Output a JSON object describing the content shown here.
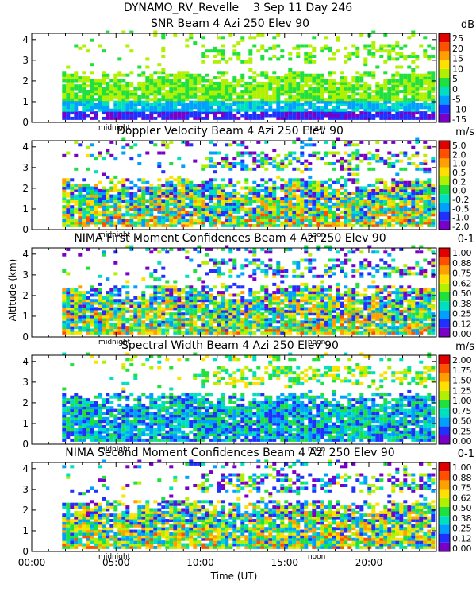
{
  "header": {
    "title": "DYNAMO_RV_Revelle    3 Sep 11 Day 246"
  },
  "chart_data": {
    "type": "heatmap",
    "xlabel": "Time (UT)",
    "ylabel": "Altitude (km)",
    "xlim": [
      0,
      24
    ],
    "x_ticks": [
      "00:00",
      "05:00",
      "10:00",
      "15:00",
      "20:00"
    ],
    "x_tick_values": [
      0,
      5,
      10,
      15,
      20
    ],
    "markers": [
      {
        "label": "midnight",
        "x": 4.9
      },
      {
        "label": "noon",
        "x": 16.9
      }
    ],
    "panels": [
      {
        "title": "SNR Beam 4 Azi 250 Elev 90",
        "unit": "dB",
        "ylim": [
          0,
          4.3
        ],
        "y_ticks": [
          "0",
          "1",
          "2",
          "3",
          "4"
        ],
        "colorbar_ticks": [
          "25",
          "20",
          "15",
          "10",
          "5",
          "0",
          "-5",
          "-10",
          "-15"
        ]
      },
      {
        "title": "Doppler Velocity Beam 4 Azi 250 Elev 90",
        "unit": "m/s",
        "ylim": [
          0,
          4.3
        ],
        "y_ticks": [
          "0",
          "1",
          "2",
          "3",
          "4"
        ],
        "colorbar_ticks": [
          "5.0",
          "2.0",
          "1.0",
          "0.5",
          "0.2",
          "0.0",
          "-0.2",
          "-0.5",
          "-1.0",
          "-2.0"
        ]
      },
      {
        "title": "NIMA First Moment Confidences Beam 4 Azi 250 Elev 90",
        "unit": "0-1",
        "ylim": [
          0,
          4.3
        ],
        "y_ticks": [
          "0",
          "1",
          "2",
          "3",
          "4"
        ],
        "colorbar_ticks": [
          "1.00",
          "0.88",
          "0.75",
          "0.62",
          "0.50",
          "0.38",
          "0.25",
          "0.12",
          "0.00"
        ]
      },
      {
        "title": "Spectral Width Beam 4 Azi 250 Elev 90",
        "unit": "m/s",
        "ylim": [
          0,
          4.3
        ],
        "y_ticks": [
          "0",
          "1",
          "2",
          "3",
          "4"
        ],
        "colorbar_ticks": [
          "2.00",
          "1.75",
          "1.50",
          "1.25",
          "1.00",
          "0.75",
          "0.50",
          "0.25",
          "0.00"
        ]
      },
      {
        "title": "NIMA Second Moment Confidences Beam 4 Azi 250 Elev 90",
        "unit": "0-1",
        "ylim": [
          0,
          4.3
        ],
        "y_ticks": [
          "0",
          "1",
          "2",
          "3",
          "4"
        ],
        "colorbar_ticks": [
          "1.00",
          "0.88",
          "0.75",
          "0.62",
          "0.50",
          "0.38",
          "0.25",
          "0.12",
          "0.00"
        ]
      }
    ],
    "palette": [
      "#7a00c8",
      "#2030ff",
      "#00a0ff",
      "#00e0c0",
      "#20e040",
      "#b0f000",
      "#ffe000",
      "#ffa000",
      "#ff5000",
      "#e00000"
    ]
  }
}
